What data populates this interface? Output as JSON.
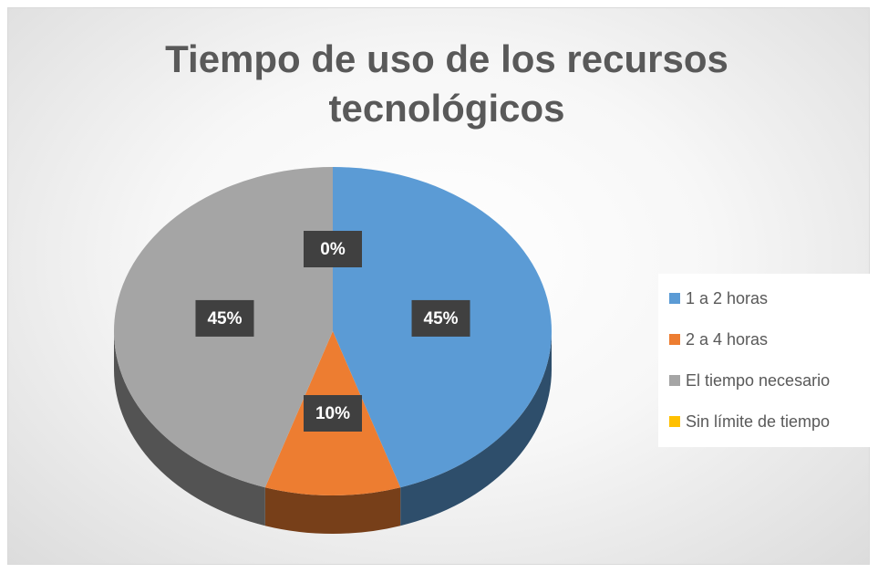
{
  "chart_data": {
    "type": "pie",
    "title": "Tiempo de uso de los recursos tecnológicos",
    "categories": [
      "1 a 2 horas",
      "2 a 4 horas",
      "El tiempo necesario",
      "Sin límite de tiempo"
    ],
    "values": [
      45,
      10,
      45,
      0
    ],
    "value_labels": [
      "45%",
      "10%",
      "45%",
      "0%"
    ],
    "colors": [
      "#5B9BD5",
      "#ED7D31",
      "#A5A5A5",
      "#FFC000"
    ],
    "legend": "right"
  }
}
